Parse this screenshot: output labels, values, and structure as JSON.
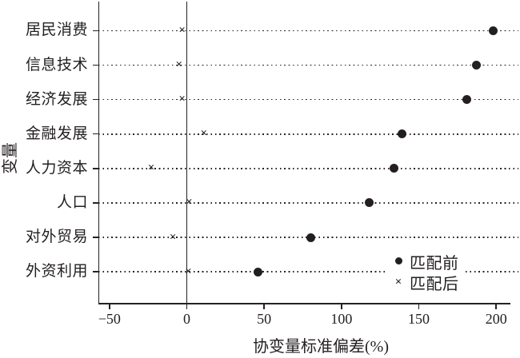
{
  "chart_data": {
    "type": "scatter",
    "title": "",
    "xlabel": "协变量标准偏差(%)",
    "ylabel": "变量",
    "categories": [
      "居民消费",
      "信息技术",
      "经济发展",
      "金融发展",
      "人力资本",
      "人口",
      "对外贸易",
      "外资利用"
    ],
    "series": [
      {
        "name": "匹配前",
        "marker": "dot",
        "values": [
          198,
          187,
          181,
          139,
          134,
          118,
          80,
          46
        ]
      },
      {
        "name": "匹配后",
        "marker": "x",
        "values": [
          -3,
          -5,
          -3,
          11,
          -23,
          1.5,
          -9,
          1
        ]
      }
    ],
    "x_ticks": [
      -50,
      0,
      50,
      100,
      150,
      200
    ],
    "xlim": [
      -57,
      215
    ],
    "grid": "horizontal-dotted",
    "zero_reference_line": true,
    "legend_position": "inside-bottom-right",
    "marker_glyphs": {
      "dot": "●",
      "x": "×"
    },
    "colors": {
      "foreground": "#231f20",
      "background": "#ffffff"
    }
  }
}
